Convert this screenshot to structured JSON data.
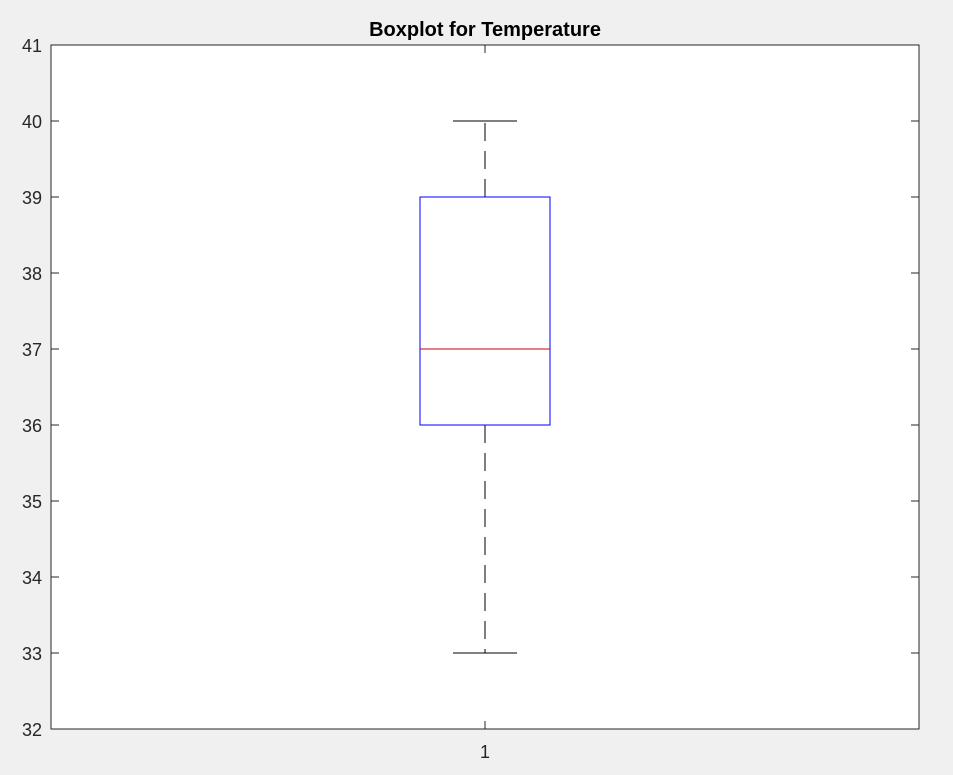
{
  "chart_data": {
    "type": "boxplot",
    "title": "Boxplot for Temperature",
    "xlabel": "",
    "ylabel": "",
    "categories": [
      "1"
    ],
    "ylim": [
      32,
      41
    ],
    "yticks": [
      "32",
      "33",
      "34",
      "35",
      "36",
      "37",
      "38",
      "39",
      "40",
      "41"
    ],
    "boxes": [
      {
        "category": "1",
        "min": 33,
        "q1": 36,
        "median": 37,
        "q3": 39,
        "max": 40
      }
    ],
    "grid": false,
    "colors": {
      "box": "#0000ff",
      "median": "#cc0000",
      "whisker": "#000000",
      "background": "#f0f0f0",
      "plot_area": "#ffffff"
    }
  }
}
